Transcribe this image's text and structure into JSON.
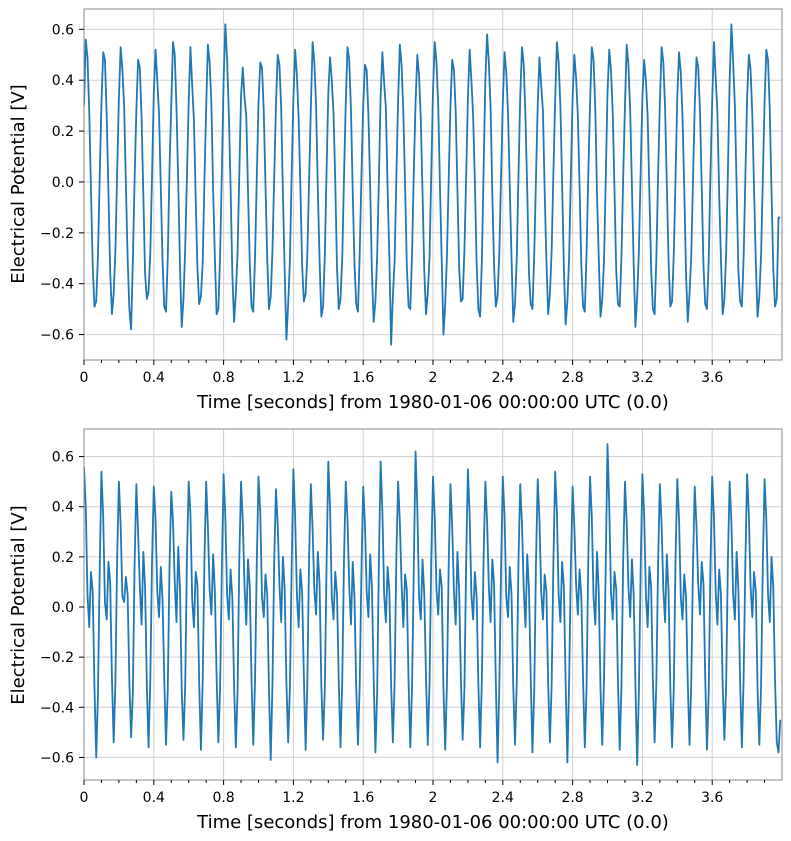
{
  "chart_data": [
    {
      "type": "line",
      "xlabel": "Time [seconds] from 1980-01-06 00:00:00 UTC (0.0)",
      "ylabel": "Electrical Potential [V]",
      "xlim": [
        0,
        4.0
      ],
      "ylim": [
        -0.7,
        0.68
      ],
      "grid": true,
      "color": "#1f77b4",
      "xticks": [
        0,
        0.4,
        0.8,
        1.2,
        1.6,
        2,
        2.4,
        2.8,
        3.2,
        3.6
      ],
      "xtick_labels": [
        "0",
        "0.4",
        "0.8",
        "1.2",
        "1.6",
        "2",
        "2.4",
        "2.8",
        "3.2",
        "3.6"
      ],
      "yticks": [
        0.6,
        0.4,
        0.2,
        0.0,
        -0.2,
        -0.4,
        -0.6
      ],
      "ytick_labels": [
        "0.6",
        "0.4",
        "0.2",
        "0.0",
        "−0.2",
        "−0.4",
        "−0.6"
      ],
      "t0": 0,
      "dt": 0.01,
      "values": [
        0.3,
        0.56,
        0.49,
        0.28,
        -0.03,
        -0.33,
        -0.49,
        -0.47,
        -0.29,
        0.02,
        0.31,
        0.51,
        0.48,
        0.26,
        -0.04,
        -0.35,
        -0.52,
        -0.44,
        -0.27,
        0.04,
        0.33,
        0.53,
        0.44,
        0.3,
        -0.01,
        -0.3,
        -0.5,
        -0.58,
        -0.31,
        0.01,
        0.28,
        0.48,
        0.45,
        0.25,
        -0.05,
        -0.36,
        -0.46,
        -0.43,
        -0.28,
        0.03,
        0.35,
        0.52,
        0.4,
        0.27,
        -0.02,
        -0.31,
        -0.49,
        -0.51,
        -0.3,
        0.05,
        0.3,
        0.55,
        0.5,
        0.29,
        0.0,
        -0.33,
        -0.57,
        -0.46,
        -0.26,
        0.02,
        0.32,
        0.53,
        0.38,
        0.24,
        -0.06,
        -0.34,
        -0.48,
        -0.45,
        -0.32,
        0.0,
        0.29,
        0.54,
        0.47,
        0.31,
        -0.03,
        -0.3,
        -0.52,
        -0.5,
        -0.29,
        0.04,
        0.4,
        0.62,
        0.48,
        0.27,
        -0.02,
        -0.36,
        -0.55,
        -0.44,
        -0.28,
        0.03,
        0.34,
        0.45,
        0.33,
        0.26,
        -0.04,
        -0.32,
        -0.49,
        -0.51,
        -0.3,
        0.01,
        0.31,
        0.47,
        0.45,
        0.28,
        -0.01,
        -0.3,
        -0.5,
        -0.45,
        -0.27,
        0.02,
        0.3,
        0.5,
        0.46,
        0.29,
        -0.05,
        -0.35,
        -0.62,
        -0.48,
        -0.31,
        0.03,
        0.33,
        0.52,
        0.42,
        0.25,
        -0.02,
        -0.33,
        -0.47,
        -0.44,
        -0.28,
        0.01,
        0.29,
        0.55,
        0.47,
        0.3,
        -0.03,
        -0.31,
        -0.53,
        -0.49,
        -0.29,
        0.04,
        0.35,
        0.49,
        0.4,
        0.27,
        0.0,
        -0.34,
        -0.5,
        -0.46,
        -0.3,
        0.02,
        0.31,
        0.53,
        0.48,
        0.28,
        -0.04,
        -0.32,
        -0.48,
        -0.51,
        -0.28,
        0.03,
        0.3,
        0.46,
        0.44,
        0.26,
        -0.02,
        -0.36,
        -0.55,
        -0.47,
        -0.29,
        0.01,
        0.34,
        0.51,
        0.39,
        0.29,
        -0.03,
        -0.3,
        -0.64,
        -0.45,
        -0.31,
        0.02,
        0.32,
        0.54,
        0.46,
        0.27,
        -0.01,
        -0.33,
        -0.49,
        -0.5,
        -0.28,
        0.04,
        0.31,
        0.5,
        0.42,
        0.25,
        -0.04,
        -0.35,
        -0.52,
        -0.44,
        -0.3,
        0.03,
        0.36,
        0.55,
        0.47,
        0.3,
        -0.02,
        -0.31,
        -0.6,
        -0.48,
        -0.29,
        0.01,
        0.3,
        0.48,
        0.44,
        0.28,
        -0.03,
        -0.34,
        -0.47,
        -0.46,
        -0.27,
        0.02,
        0.33,
        0.52,
        0.4,
        0.26,
        0.0,
        -0.32,
        -0.5,
        -0.53,
        -0.31,
        0.05,
        0.4,
        0.58,
        0.47,
        0.29,
        -0.05,
        -0.33,
        -0.49,
        -0.45,
        -0.28,
        0.02,
        0.31,
        0.51,
        0.43,
        0.27,
        -0.02,
        -0.3,
        -0.55,
        -0.48,
        -0.3,
        0.03,
        0.34,
        0.53,
        0.46,
        0.25,
        -0.03,
        -0.36,
        -0.48,
        -0.5,
        -0.29,
        0.01,
        0.3,
        0.49,
        0.38,
        0.28,
        -0.04,
        -0.31,
        -0.52,
        -0.44,
        -0.27,
        0.04,
        0.32,
        0.55,
        0.47,
        0.3,
        -0.01,
        -0.34,
        -0.56,
        -0.47,
        -0.3,
        0.02,
        0.33,
        0.5,
        0.41,
        0.26,
        -0.02,
        -0.33,
        -0.49,
        -0.51,
        -0.28,
        0.03,
        0.31,
        0.53,
        0.48,
        0.29,
        -0.05,
        -0.3,
        -0.53,
        -0.46,
        -0.31,
        0.01,
        0.35,
        0.52,
        0.44,
        0.27,
        -0.03,
        -0.35,
        -0.48,
        -0.49,
        -0.29,
        0.02,
        0.3,
        0.54,
        0.46,
        0.28,
        -0.02,
        -0.32,
        -0.57,
        -0.45,
        -0.27,
        0.04,
        0.33,
        0.48,
        0.4,
        0.26,
        -0.04,
        -0.34,
        -0.5,
        -0.52,
        -0.3,
        0.03,
        0.31,
        0.53,
        0.47,
        0.29,
        -0.01,
        -0.31,
        -0.49,
        -0.47,
        -0.28,
        0.02,
        0.34,
        0.51,
        0.43,
        0.25,
        -0.03,
        -0.36,
        -0.55,
        -0.44,
        -0.29,
        0.01,
        0.3,
        0.49,
        0.45,
        0.28,
        -0.02,
        -0.33,
        -0.48,
        -0.5,
        -0.31,
        0.03,
        0.32,
        0.55,
        0.41,
        0.27,
        -0.05,
        -0.3,
        -0.52,
        -0.46,
        -0.28,
        0.04,
        0.4,
        0.62,
        0.47,
        0.3,
        -0.02,
        -0.35,
        -0.47,
        -0.49,
        -0.3,
        0.02,
        0.33,
        0.5,
        0.44,
        0.26,
        -0.03,
        -0.32,
        -0.53,
        -0.45,
        -0.29,
        0.01,
        0.31,
        0.52,
        0.48,
        0.28,
        -0.04,
        -0.34,
        -0.49,
        -0.46,
        -0.14,
        -0.14
      ]
    },
    {
      "type": "line",
      "xlabel": "Time [seconds] from 1980-01-06 00:00:00 UTC (0.0)",
      "ylabel": "Electrical Potential [V]",
      "xlim": [
        0,
        4.0
      ],
      "ylim": [
        -0.69,
        0.71
      ],
      "grid": true,
      "color": "#1f77b4",
      "xticks": [
        0,
        0.4,
        0.8,
        1.2,
        1.6,
        2,
        2.4,
        2.8,
        3.2,
        3.6
      ],
      "xtick_labels": [
        "0",
        "0.4",
        "0.8",
        "1.2",
        "1.6",
        "2",
        "2.4",
        "2.8",
        "3.2",
        "3.6"
      ],
      "yticks": [
        0.6,
        0.4,
        0.2,
        0.0,
        -0.2,
        -0.4,
        -0.6
      ],
      "ytick_labels": [
        "0.6",
        "0.4",
        "0.2",
        "0.0",
        "−0.2",
        "−0.4",
        "−0.6"
      ],
      "t0": 0,
      "dt": 0.01,
      "values": [
        0.56,
        0.4,
        0.05,
        -0.08,
        0.14,
        0.06,
        -0.32,
        -0.6,
        -0.35,
        0.15,
        0.54,
        0.36,
        0.02,
        -0.05,
        0.18,
        0.1,
        -0.28,
        -0.54,
        -0.3,
        0.2,
        0.5,
        0.33,
        0.04,
        0.02,
        0.12,
        0.05,
        -0.3,
        -0.52,
        -0.34,
        0.17,
        0.49,
        0.3,
        0.08,
        -0.07,
        0.22,
        0.08,
        -0.31,
        -0.56,
        -0.29,
        0.19,
        0.48,
        0.35,
        0.06,
        -0.04,
        0.16,
        0.03,
        -0.29,
        -0.55,
        -0.33,
        0.16,
        0.46,
        0.34,
        0.1,
        -0.06,
        0.24,
        0.07,
        -0.33,
        -0.53,
        -0.31,
        0.2,
        0.5,
        0.37,
        0.03,
        -0.08,
        0.14,
        0.09,
        -0.3,
        -0.57,
        -0.3,
        0.18,
        0.5,
        0.32,
        0.07,
        -0.03,
        0.21,
        0.06,
        -0.28,
        -0.54,
        -0.32,
        0.15,
        0.53,
        0.36,
        0.05,
        -0.05,
        0.15,
        0.04,
        -0.31,
        -0.56,
        -0.34,
        0.19,
        0.5,
        0.34,
        0.08,
        -0.07,
        0.19,
        0.08,
        -0.29,
        -0.55,
        -0.3,
        0.17,
        0.52,
        0.38,
        0.04,
        -0.04,
        0.13,
        0.05,
        -0.33,
        -0.61,
        -0.31,
        0.18,
        0.47,
        0.33,
        0.09,
        -0.06,
        0.2,
        0.07,
        -0.3,
        -0.54,
        -0.32,
        0.16,
        0.55,
        0.36,
        0.05,
        -0.08,
        0.15,
        0.06,
        -0.28,
        -0.57,
        -0.3,
        0.2,
        0.49,
        0.31,
        0.07,
        -0.03,
        0.22,
        0.09,
        -0.31,
        -0.53,
        -0.33,
        0.17,
        0.58,
        0.4,
        0.04,
        -0.05,
        0.14,
        0.05,
        -0.3,
        -0.56,
        -0.29,
        0.19,
        0.5,
        0.35,
        0.08,
        -0.07,
        0.18,
        0.04,
        -0.32,
        -0.55,
        -0.31,
        0.15,
        0.48,
        0.33,
        0.06,
        -0.04,
        0.21,
        0.08,
        -0.29,
        -0.58,
        -0.34,
        0.18,
        0.58,
        0.38,
        0.05,
        -0.06,
        0.16,
        0.06,
        -0.31,
        -0.54,
        -0.3,
        0.2,
        0.5,
        0.34,
        0.09,
        -0.08,
        0.13,
        0.07,
        -0.3,
        -0.56,
        -0.32,
        0.16,
        0.62,
        0.4,
        0.04,
        -0.05,
        0.19,
        0.05,
        -0.28,
        -0.55,
        -0.31,
        0.19,
        0.52,
        0.36,
        0.07,
        -0.03,
        0.15,
        0.08,
        -0.33,
        -0.57,
        -0.3,
        0.17,
        0.49,
        0.32,
        0.06,
        -0.07,
        0.22,
        0.06,
        -0.29,
        -0.53,
        -0.33,
        0.18,
        0.55,
        0.37,
        0.05,
        -0.05,
        0.14,
        0.04,
        -0.31,
        -0.56,
        -0.29,
        0.2,
        0.5,
        0.34,
        0.08,
        -0.06,
        0.19,
        0.09,
        -0.3,
        -0.62,
        -0.32,
        0.15,
        0.52,
        0.36,
        0.04,
        -0.04,
        0.16,
        0.05,
        -0.32,
        -0.55,
        -0.3,
        0.19,
        0.49,
        0.33,
        0.07,
        -0.08,
        0.21,
        0.07,
        -0.28,
        -0.58,
        -0.34,
        0.17,
        0.51,
        0.35,
        0.06,
        -0.05,
        0.13,
        0.06,
        -0.31,
        -0.54,
        -0.31,
        0.18,
        0.54,
        0.38,
        0.05,
        -0.06,
        0.18,
        0.08,
        -0.3,
        -0.62,
        -0.3,
        0.16,
        0.48,
        0.32,
        0.09,
        -0.03,
        0.15,
        0.04,
        -0.29,
        -0.56,
        -0.32,
        0.2,
        0.52,
        0.36,
        0.04,
        -0.07,
        0.22,
        0.06,
        -0.33,
        -0.55,
        -0.29,
        0.17,
        0.65,
        0.4,
        0.06,
        -0.05,
        0.14,
        0.07,
        -0.3,
        -0.57,
        -0.31,
        0.19,
        0.5,
        0.34,
        0.08,
        -0.04,
        0.19,
        0.05,
        -0.31,
        -0.63,
        -0.33,
        0.15,
        0.53,
        0.37,
        0.05,
        -0.08,
        0.16,
        0.08,
        -0.29,
        -0.54,
        -0.3,
        0.18,
        0.49,
        0.33,
        0.07,
        -0.06,
        0.21,
        0.06,
        -0.32,
        -0.56,
        -0.32,
        0.2,
        0.51,
        0.35,
        0.04,
        -0.05,
        0.13,
        0.04,
        -0.3,
        -0.55,
        -0.3,
        0.17,
        0.48,
        0.32,
        0.09,
        -0.03,
        0.18,
        0.09,
        -0.28,
        -0.57,
        -0.34,
        0.16,
        0.52,
        0.36,
        0.06,
        -0.07,
        0.15,
        0.05,
        -0.31,
        -0.53,
        -0.31,
        0.19,
        0.5,
        0.34,
        0.05,
        -0.05,
        0.22,
        0.07,
        -0.3,
        -0.56,
        -0.29,
        0.18,
        0.53,
        0.37,
        0.08,
        -0.04,
        0.14,
        0.06,
        -0.33,
        -0.55,
        -0.32,
        0.17,
        0.51,
        0.35,
        0.05,
        -0.06,
        0.2,
        0.08,
        -0.29,
        -0.54,
        -0.58,
        -0.45
      ]
    }
  ]
}
